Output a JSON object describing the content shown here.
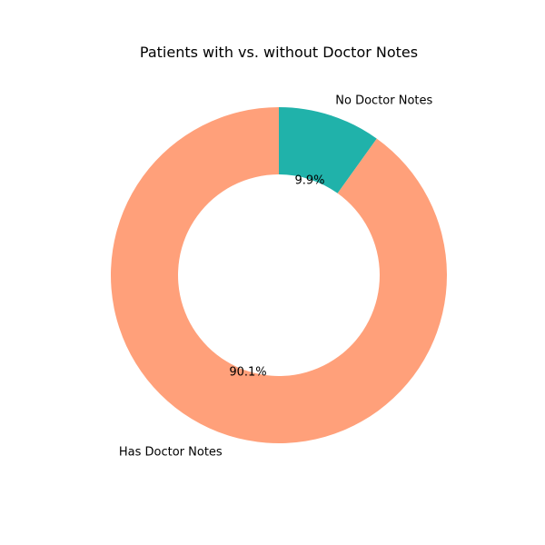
{
  "chart_data": {
    "type": "pie",
    "style": "donut",
    "title": "Patients with vs. without Doctor Notes",
    "categories": [
      "No Doctor Notes",
      "Has Doctor Notes"
    ],
    "values": [
      9.9,
      90.1
    ],
    "percent_labels": [
      "9.9%",
      "90.1%"
    ],
    "colors": [
      "#20b2aa",
      "#ffa07a"
    ],
    "start_angle_deg": 90,
    "direction": "clockwise"
  }
}
